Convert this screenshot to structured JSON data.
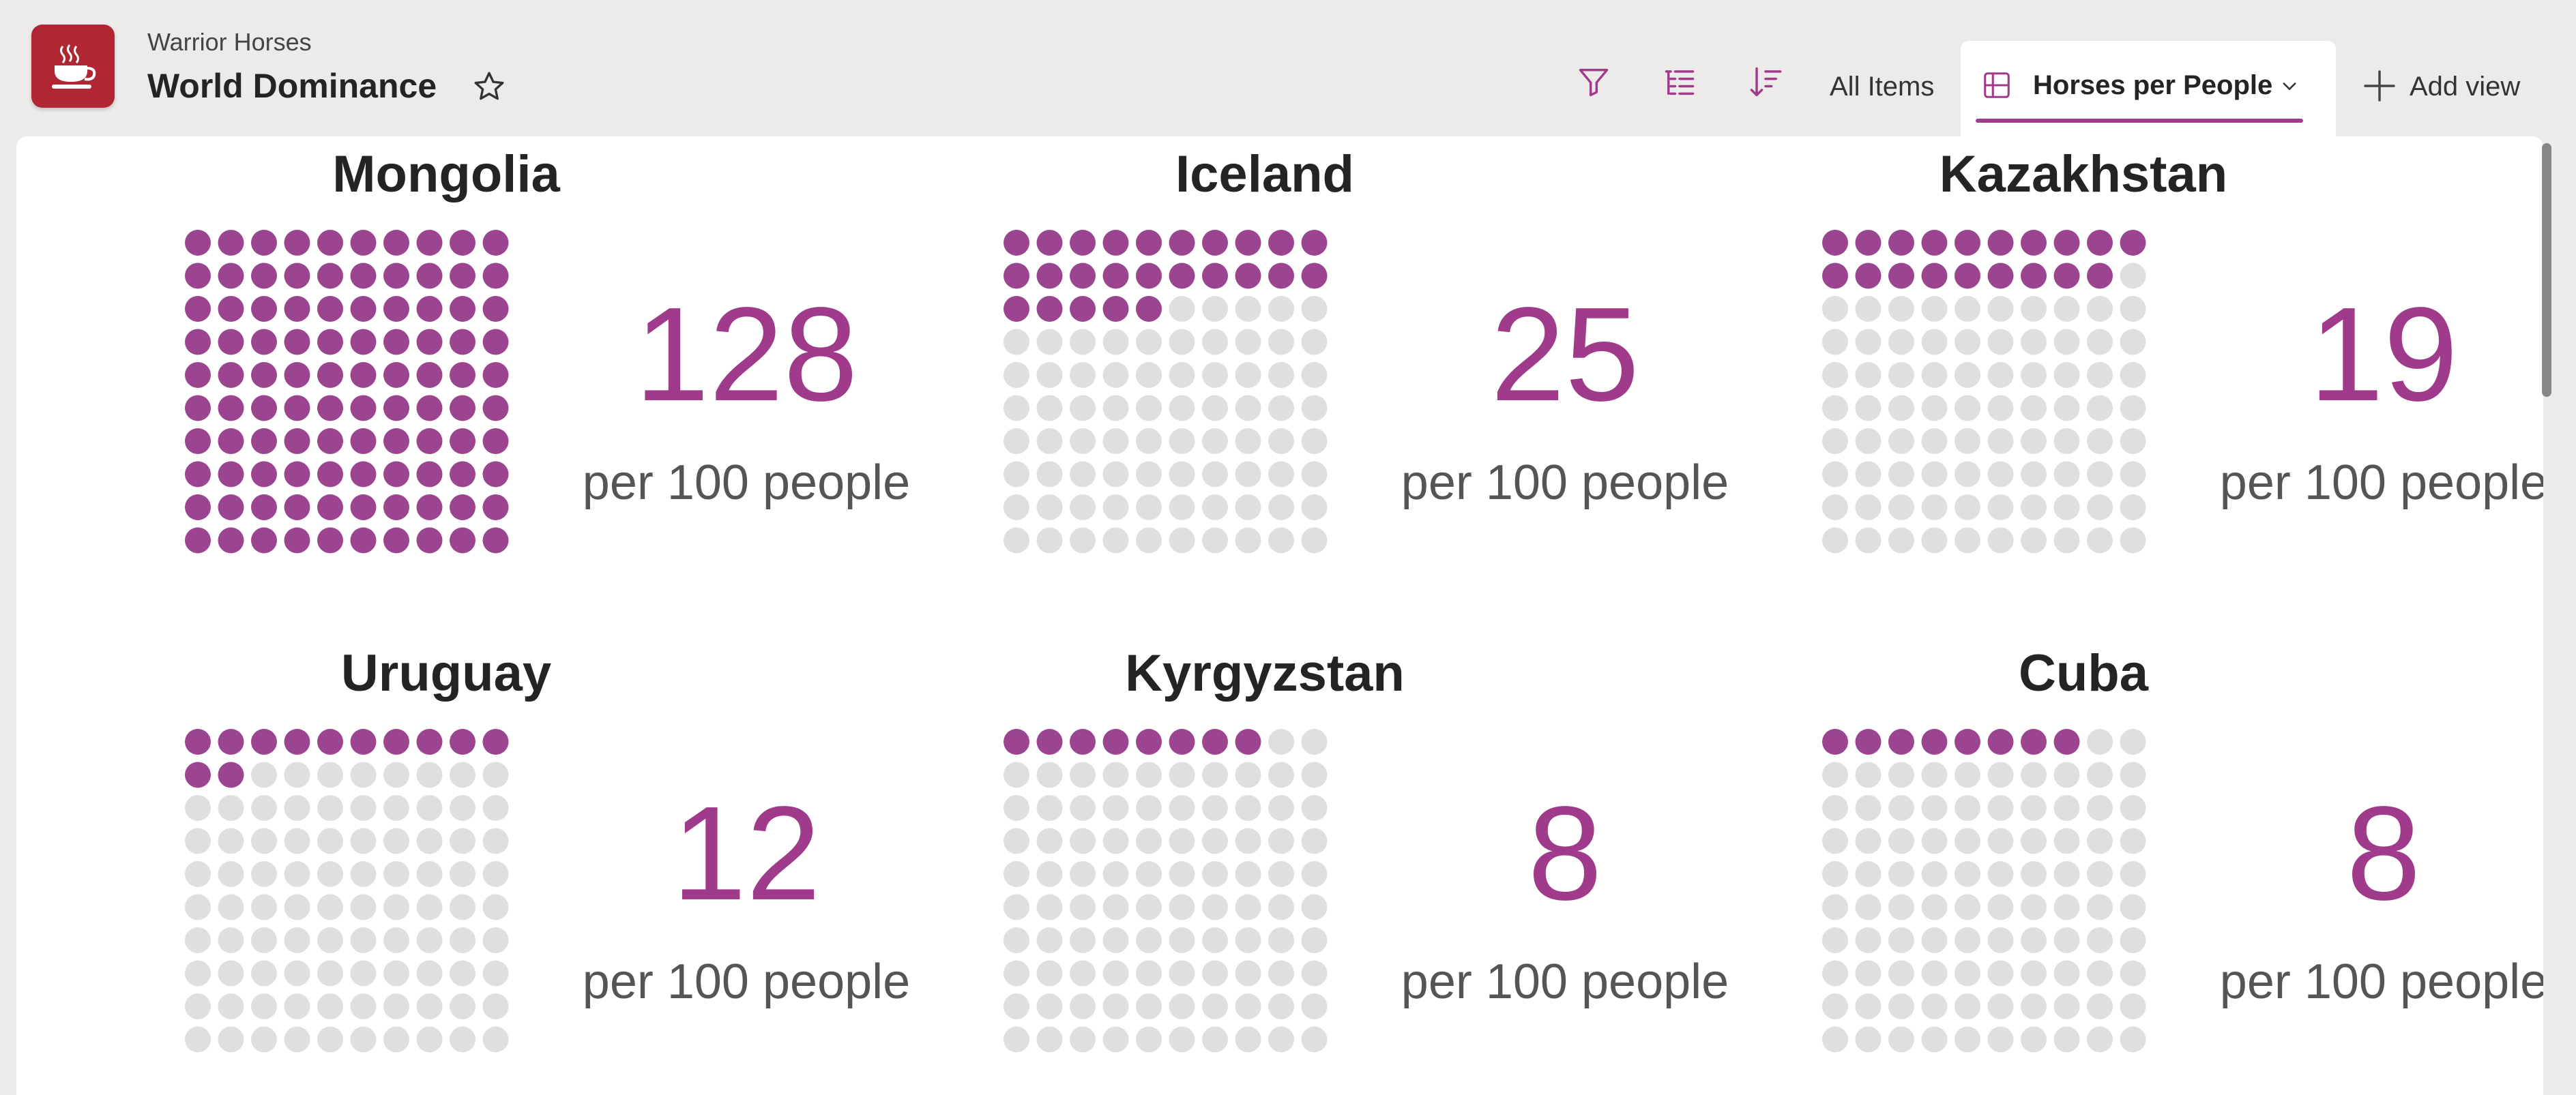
{
  "header": {
    "site_name": "Warrior Horses",
    "page_title": "World Dominance",
    "view_all_items": "All Items",
    "active_view": "Horses per People",
    "add_view": "Add view"
  },
  "colors": {
    "accent": "#a03b8c",
    "dot_filled": "#9b4590",
    "dot_empty": "#e1dfdd",
    "logo": "#b02733"
  },
  "icons": [
    "coffee-cup-icon",
    "star-icon",
    "filter-icon",
    "list-group-icon",
    "sort-icon",
    "grid-view-icon",
    "chevron-down-icon",
    "plus-icon"
  ],
  "cards": [
    {
      "country": "Mongolia",
      "value": "128",
      "unit": "per 100 people",
      "filled": 100
    },
    {
      "country": "Iceland",
      "value": "25",
      "unit": "per 100 people",
      "filled": 25
    },
    {
      "country": "Kazakhstan",
      "value": "19",
      "unit": "per 100 people",
      "filled": 19
    },
    {
      "country": "Uruguay",
      "value": "12",
      "unit": "per 100 people",
      "filled": 12
    },
    {
      "country": "Kyrgyzstan",
      "value": "8",
      "unit": "per 100 people",
      "filled": 8
    },
    {
      "country": "Cuba",
      "value": "8",
      "unit": "per 100 people",
      "filled": 8
    }
  ]
}
